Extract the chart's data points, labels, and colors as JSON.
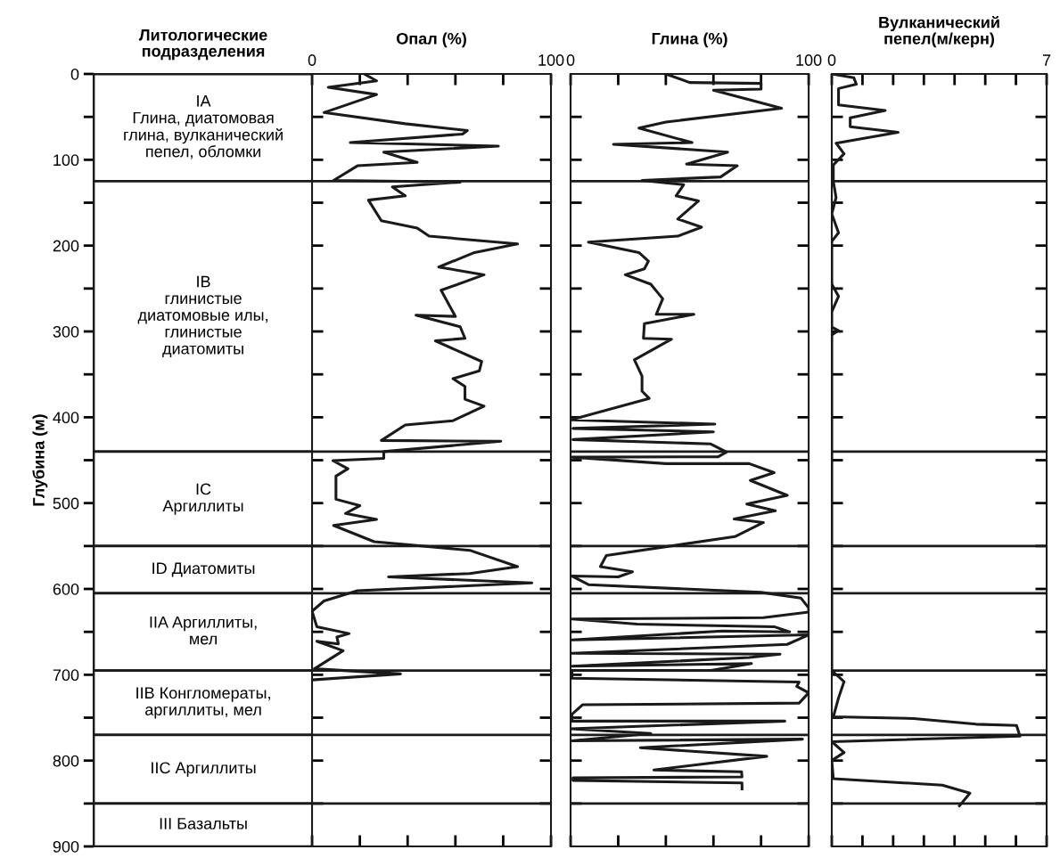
{
  "chart_data": [
    {
      "type": "bar",
      "stacked": true,
      "categories": [
        null
      ],
      "title": "Литологические\nподразделения",
      "ylabel": "Глубина (м)",
      "ylim": [
        900,
        0
      ],
      "tick_labels": "y",
      "yticks": [
        0,
        {
          "value": 50,
          "label": null
        },
        100,
        {
          "value": 150,
          "label": null
        },
        200,
        {
          "value": 250,
          "label": null
        },
        300,
        {
          "value": 350,
          "label": null
        },
        400,
        {
          "value": 450,
          "label": null
        },
        500,
        {
          "value": 550,
          "label": null
        },
        600,
        {
          "value": 650,
          "label": null
        },
        700,
        {
          "value": 750,
          "label": null
        },
        800,
        {
          "value": 850,
          "label": null
        },
        900
      ],
      "series": [
        {
          "name": "IA\nГлина, диатомовая\nглина, вулканический\nпепел, обломки",
          "color": "#ffffff",
          "values": [
            125
          ]
        },
        {
          "name": "IB\nглинистые\nдиатомовые илы,\nглинистые\nдиатомиты",
          "color": "#ffffff",
          "values": [
            315
          ]
        },
        {
          "name": "IC\nАргиллиты",
          "color": "#ffffff",
          "values": [
            110
          ]
        },
        {
          "name": "ID Диатомиты",
          "color": "#ffffff",
          "values": [
            55
          ]
        },
        {
          "name": "IIA Аргиллиты,\nмел",
          "color": "#ffffff",
          "values": [
            90
          ]
        },
        {
          "name": "IIB Конгломераты,\nаргиллиты, мел",
          "color": "#ffffff",
          "values": [
            75
          ]
        },
        {
          "name": "IIC Аргиллиты",
          "color": "#ffffff",
          "values": [
            80
          ]
        },
        {
          "name": "III Базальты",
          "color": "#ffffff",
          "values": [
            50
          ]
        }
      ]
    },
    {
      "type": "line",
      "orientation": "horizontal",
      "title": "Опал (%)",
      "tick_labels": "x",
      "xlim": [
        0,
        100
      ],
      "xticks": [
        0,
        {
          "value": 20,
          "label": null
        },
        {
          "value": 40,
          "label": null
        },
        {
          "value": 60,
          "label": null
        },
        {
          "value": 80,
          "label": null
        },
        100
      ],
      "ylim": [
        900,
        0
      ],
      "yticks": [
        {
          "value": 50,
          "label": null
        },
        {
          "value": 100,
          "label": null
        },
        {
          "value": 150,
          "label": null
        },
        {
          "value": 200,
          "label": null
        },
        {
          "value": 250,
          "label": null
        },
        {
          "value": 300,
          "label": null
        },
        {
          "value": 350,
          "label": null
        },
        {
          "value": 400,
          "label": null
        },
        {
          "value": 450,
          "label": null
        },
        {
          "value": 500,
          "label": null
        },
        {
          "value": 550,
          "label": null
        },
        {
          "value": 600,
          "label": null
        },
        {
          "value": 650,
          "label": null
        },
        {
          "value": 700,
          "label": null
        },
        {
          "value": 750,
          "label": null
        },
        {
          "value": 800,
          "label": null
        },
        {
          "value": 850,
          "label": null
        }
      ],
      "x": [
        0,
        8,
        15.5,
        24,
        45,
        58,
        66,
        70,
        80,
        84,
        91,
        103,
        107,
        124,
        126,
        131.5,
        142,
        147,
        171,
        179.5,
        189,
        198,
        208,
        225,
        234,
        252,
        282.5,
        281,
        294.5,
        308,
        311,
        335,
        346,
        355,
        364,
        379,
        387,
        404,
        409,
        427,
        428,
        440,
        448,
        450.5,
        460,
        468.5,
        495.5,
        503,
        512,
        519,
        526,
        545,
        555,
        574,
        582,
        586,
        593,
        602,
        614,
        626,
        644,
        652,
        656,
        664,
        661,
        672,
        693,
        699,
        706
      ],
      "series": [
        {
          "color": "#1a1a1a",
          "values": [
            21.8,
            27,
            6.8,
            27,
            5,
            39,
            65,
            63,
            16,
            78,
            30,
            44,
            19,
            9,
            62,
            33.6,
            39,
            23.6,
            29,
            44,
            49,
            86,
            68,
            53,
            72,
            54,
            60,
            43.5,
            62,
            64,
            51.6,
            71,
            70,
            59,
            64,
            64,
            72,
            59,
            39,
            29,
            79,
            30,
            30,
            8.7,
            15,
            10,
            10,
            20,
            14,
            27,
            9,
            26,
            66,
            86,
            66,
            32,
            92,
            19,
            5,
            0,
            2,
            15.5,
            10.4,
            11,
            2,
            13,
            1,
            37,
            0
          ]
        }
      ],
      "ref_lines": [
        {
          "axis": "y",
          "value": 125
        },
        {
          "axis": "y",
          "value": 440
        },
        {
          "axis": "y",
          "value": 550
        },
        {
          "axis": "y",
          "value": 605
        },
        {
          "axis": "y",
          "value": 695
        },
        {
          "axis": "y",
          "value": 770
        },
        {
          "axis": "y",
          "value": 850
        }
      ]
    },
    {
      "type": "line",
      "orientation": "horizontal",
      "title": "Глина (%)",
      "tick_labels": "x",
      "xlim": [
        0,
        100
      ],
      "xticks": [
        0,
        {
          "value": 20,
          "label": null
        },
        {
          "value": 40,
          "label": null
        },
        {
          "value": 60,
          "label": null
        },
        {
          "value": 80,
          "label": null
        },
        100
      ],
      "ylim": [
        900,
        0
      ],
      "yticks": [
        {
          "value": 50,
          "label": null
        },
        {
          "value": 100,
          "label": null
        },
        {
          "value": 150,
          "label": null
        },
        {
          "value": 200,
          "label": null
        },
        {
          "value": 250,
          "label": null
        },
        {
          "value": 300,
          "label": null
        },
        {
          "value": 350,
          "label": null
        },
        {
          "value": 400,
          "label": null
        },
        {
          "value": 450,
          "label": null
        },
        {
          "value": 500,
          "label": null
        },
        {
          "value": 550,
          "label": null
        },
        {
          "value": 600,
          "label": null
        },
        {
          "value": 650,
          "label": null
        },
        {
          "value": 700,
          "label": null
        },
        {
          "value": 750,
          "label": null
        },
        {
          "value": 800,
          "label": null
        },
        {
          "value": 850,
          "label": null
        }
      ],
      "x": [
        0,
        10,
        11,
        17.6,
        19,
        40,
        56,
        63,
        80,
        82,
        91,
        105,
        107,
        120,
        124,
        129,
        142,
        148,
        169,
        178.5,
        189,
        196,
        208,
        218,
        227,
        234,
        245,
        262,
        280,
        280,
        291,
        308,
        309,
        333,
        352,
        369.5,
        378,
        403,
        408,
        413,
        417,
        426,
        431,
        440.5,
        446,
        446.5,
        454,
        454,
        464.5,
        473.6,
        491,
        501,
        509,
        518.6,
        522.6,
        539,
        561,
        574,
        580,
        586,
        585,
        595,
        604,
        610.5,
        622,
        627,
        633.5,
        635,
        641,
        644,
        650,
        649,
        659.5,
        653.5,
        664.6,
        675,
        676,
        680,
        690,
        687,
        695,
        695,
        704,
        708.5,
        713.5,
        721,
        733,
        735,
        746,
        754,
        754,
        763,
        768.4,
        777,
        775,
        785,
        795,
        811,
        813,
        819,
        820,
        823,
        826,
        833
      ],
      "series": [
        {
          "color": "#1a1a1a",
          "values": [
            40,
            50,
            80,
            80,
            60,
            88.6,
            40,
            28.7,
            51,
            18,
            66,
            48.7,
            70,
            63,
            30,
            47.5,
            44.3,
            53.7,
            45,
            55,
            45,
            7.5,
            28.7,
            32.7,
            31,
            23,
            33.7,
            38.7,
            36,
            51.8,
            31,
            30.6,
            42.4,
            26.8,
            30,
            30,
            33,
            0,
            60.6,
            1,
            60,
            1,
            58.7,
            65.5,
            62,
            0.6,
            40,
            75,
            85.5,
            75.5,
            91,
            74,
            86,
            68.7,
            81,
            69,
            15,
            12.5,
            26,
            20,
            0.6,
            7.5,
            80,
            96.7,
            100,
            100,
            81,
            0.6,
            28,
            85.5,
            92,
            63.7,
            0.6,
            100,
            91,
            0.6,
            88,
            75,
            0.6,
            76,
            59,
            0.6,
            0.6,
            96,
            95,
            100,
            96,
            5,
            0.6,
            0.6,
            90,
            0,
            33.7,
            0.6,
            97.4,
            29.3,
            82.4,
            35,
            71.8,
            72,
            1,
            1,
            72,
            72
          ]
        }
      ],
      "ref_lines": [
        {
          "axis": "y",
          "value": 125
        },
        {
          "axis": "y",
          "value": 440
        },
        {
          "axis": "y",
          "value": 550
        },
        {
          "axis": "y",
          "value": 605
        },
        {
          "axis": "y",
          "value": 695
        },
        {
          "axis": "y",
          "value": 770
        },
        {
          "axis": "y",
          "value": 850
        }
      ]
    },
    {
      "type": "line",
      "orientation": "horizontal",
      "title": "Вулканический\nпепел(м/керн)",
      "tick_labels": "x",
      "xlim": [
        0,
        7
      ],
      "xticks": [
        0,
        {
          "value": 1,
          "label": null
        },
        {
          "value": 2,
          "label": null
        },
        {
          "value": 3,
          "label": null
        },
        {
          "value": 4,
          "label": null
        },
        {
          "value": 5,
          "label": null
        },
        {
          "value": 6,
          "label": null
        },
        7
      ],
      "ylim": [
        900,
        0
      ],
      "yticks": [
        {
          "value": 50,
          "label": null
        },
        {
          "value": 100,
          "label": null
        },
        {
          "value": 150,
          "label": null
        },
        {
          "value": 200,
          "label": null
        },
        {
          "value": 250,
          "label": null
        },
        {
          "value": 300,
          "label": null
        },
        {
          "value": 350,
          "label": null
        },
        {
          "value": 400,
          "label": null
        },
        {
          "value": 450,
          "label": null
        },
        {
          "value": 500,
          "label": null
        },
        {
          "value": 550,
          "label": null
        },
        {
          "value": 600,
          "label": null
        },
        {
          "value": 650,
          "label": null
        },
        {
          "value": 700,
          "label": null
        },
        {
          "value": 750,
          "label": null
        },
        {
          "value": 800,
          "label": null
        },
        {
          "value": 850,
          "label": null
        }
      ],
      "x": [
        0,
        4.5,
        12,
        17,
        36,
        42.6,
        51,
        61.6,
        68,
        80.6,
        93,
        106,
        125,
        144,
        163,
        185,
        195,
        245,
        259,
        277,
        295,
        299,
        304,
        695,
        708,
        727,
        749,
        751,
        757.6,
        759,
        771.5,
        778,
        790.6,
        800,
        821,
        828.6,
        838,
        852.7
      ],
      "series": [
        {
          "color": "#1a1a1a",
          "values": [
            0,
            0.72,
            0.8,
            0.22,
            0.22,
            1.74,
            0.6,
            0.6,
            2.16,
            0.14,
            0.4,
            0.05,
            0.05,
            0.14,
            0,
            0.22,
            0,
            0,
            0.22,
            0,
            0,
            0.22,
            0,
            0,
            0.4,
            0.22,
            0.05,
            2.67,
            4.7,
            6.02,
            6.13,
            0,
            0.4,
            0,
            0.05,
            3.6,
            4.5,
            4.16
          ]
        }
      ],
      "ref_lines": [
        {
          "axis": "y",
          "value": 125
        },
        {
          "axis": "y",
          "value": 440
        },
        {
          "axis": "y",
          "value": 550
        },
        {
          "axis": "y",
          "value": 605
        },
        {
          "axis": "y",
          "value": 695
        },
        {
          "axis": "y",
          "value": 770
        },
        {
          "axis": "y",
          "value": 850
        }
      ]
    }
  ]
}
